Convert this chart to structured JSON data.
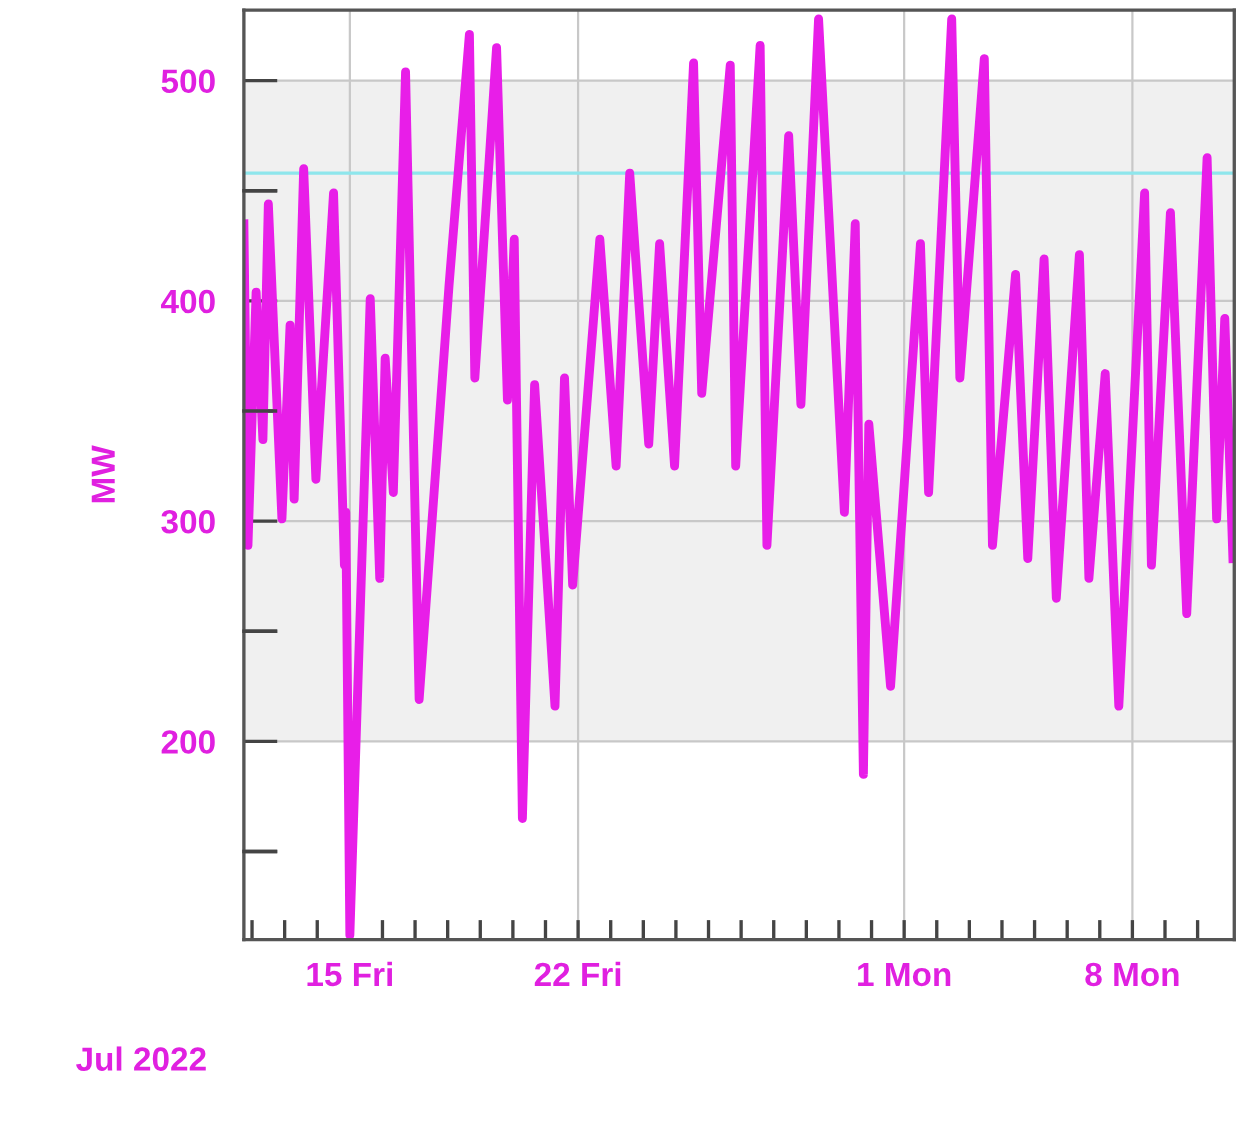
{
  "chart_data": {
    "type": "line",
    "ylabel": "MW",
    "xlabel": "Jul 2022",
    "x": [
      "2022-07-11T18:00",
      "2022-07-11T21:00",
      "2022-07-12T03:00",
      "2022-07-12T08:00",
      "2022-07-12T12:00",
      "2022-07-12T22:00",
      "2022-07-13T04:00",
      "2022-07-13T07:00",
      "2022-07-13T14:00",
      "2022-07-13T23:00",
      "2022-07-14T12:00",
      "2022-07-14T20:00",
      "2022-07-14T21:00",
      "2022-07-15T00:00",
      "2022-07-15T15:00",
      "2022-07-15T22:00",
      "2022-07-16T02:00",
      "2022-07-16T08:00",
      "2022-07-16T17:00",
      "2022-07-17T03:00",
      "2022-07-18T01:00",
      "2022-07-18T16:00",
      "2022-07-18T20:00",
      "2022-07-19T12:00",
      "2022-07-19T20:00",
      "2022-07-20T01:00",
      "2022-07-20T07:00",
      "2022-07-20T16:00",
      "2022-07-21T07:00",
      "2022-07-21T14:00",
      "2022-07-21T20:00",
      "2022-07-22T16:00",
      "2022-07-23T04:00",
      "2022-07-23T14:00",
      "2022-07-24T04:00",
      "2022-07-24T12:00",
      "2022-07-24T23:00",
      "2022-07-25T13:00",
      "2022-07-25T19:00",
      "2022-07-26T16:00",
      "2022-07-26T20:00",
      "2022-07-27T14:00",
      "2022-07-27T19:00",
      "2022-07-28T11:00",
      "2022-07-28T20:00",
      "2022-07-29T09:00",
      "2022-07-30T04:00",
      "2022-07-30T12:00",
      "2022-07-30T18:00",
      "2022-07-30T22:00",
      "2022-07-31T14:00",
      "2022-07-31T23:00",
      "2022-08-01T12:00",
      "2022-08-01T18:00",
      "2022-08-02T11:00",
      "2022-08-02T17:00",
      "2022-08-03T11:00",
      "2022-08-03T17:00",
      "2022-08-04T10:00",
      "2022-08-04T19:00",
      "2022-08-05T07:00",
      "2022-08-05T16:00",
      "2022-08-06T09:00",
      "2022-08-06T16:00",
      "2022-08-07T04:00",
      "2022-08-07T14:00",
      "2022-08-08T09:00",
      "2022-08-08T14:00",
      "2022-08-09T04:00",
      "2022-08-09T16:00",
      "2022-08-10T07:00",
      "2022-08-10T14:00",
      "2022-08-10T20:00",
      "2022-08-11T02:00"
    ],
    "series": [
      {
        "color": "#e81ee8",
        "values": [
          435,
          289,
          404,
          337,
          444,
          301,
          389,
          310,
          460,
          319,
          449,
          280,
          304,
          112,
          401,
          274,
          374,
          313,
          504,
          219,
          407,
          521,
          365,
          515,
          355,
          428,
          165,
          362,
          216,
          365,
          271,
          428,
          325,
          458,
          335,
          426,
          325,
          508,
          358,
          507,
          325,
          516,
          289,
          475,
          353,
          528,
          304,
          435,
          185,
          344,
          225,
          307,
          426,
          313,
          528,
          365,
          510,
          289,
          412,
          283,
          419,
          265,
          421,
          274,
          367,
          216,
          449,
          280,
          440,
          258,
          465,
          301,
          392,
          283
        ]
      }
    ],
    "xlim": [
      "2022-07-11T18:00",
      "2022-08-11T03:00"
    ],
    "ylim": [
      110,
      532
    ],
    "yticks": [
      {
        "value": 150,
        "label": null
      },
      200,
      {
        "value": 250,
        "label": null
      },
      300,
      {
        "value": 350,
        "label": null
      },
      400,
      {
        "value": 450,
        "label": null
      },
      500
    ],
    "xticks": [
      {
        "value": "2022-07-12",
        "label": null
      },
      {
        "value": "2022-07-13",
        "label": null
      },
      {
        "value": "2022-07-14",
        "label": null
      },
      {
        "value": "2022-07-15",
        "label": "15 Fri"
      },
      {
        "value": "2022-07-16",
        "label": null
      },
      {
        "value": "2022-07-17",
        "label": null
      },
      {
        "value": "2022-07-18",
        "label": null
      },
      {
        "value": "2022-07-19",
        "label": null
      },
      {
        "value": "2022-07-20",
        "label": null
      },
      {
        "value": "2022-07-21",
        "label": null
      },
      {
        "value": "2022-07-22",
        "label": "22 Fri"
      },
      {
        "value": "2022-07-23",
        "label": null
      },
      {
        "value": "2022-07-24",
        "label": null
      },
      {
        "value": "2022-07-25",
        "label": null
      },
      {
        "value": "2022-07-26",
        "label": null
      },
      {
        "value": "2022-07-27",
        "label": null
      },
      {
        "value": "2022-07-28",
        "label": null
      },
      {
        "value": "2022-07-29",
        "label": null
      },
      {
        "value": "2022-07-30",
        "label": null
      },
      {
        "value": "2022-07-31",
        "label": null
      },
      {
        "value": "2022-08-01",
        "label": "1 Mon"
      },
      {
        "value": "2022-08-02",
        "label": null
      },
      {
        "value": "2022-08-03",
        "label": null
      },
      {
        "value": "2022-08-04",
        "label": null
      },
      {
        "value": "2022-08-05",
        "label": null
      },
      {
        "value": "2022-08-06",
        "label": null
      },
      {
        "value": "2022-08-07",
        "label": null
      },
      {
        "value": "2022-08-08",
        "label": "8 Mon"
      },
      {
        "value": "2022-08-09",
        "label": null
      },
      {
        "value": "2022-08-10",
        "label": null
      }
    ],
    "bands": [
      {
        "axis": "y",
        "from": 200,
        "to": 500,
        "color": "#f0f0f0"
      }
    ],
    "ref_lines": [
      {
        "axis": "y",
        "value": 458,
        "color": "#8ee6ec"
      }
    ],
    "grid": true,
    "line_style": "solid",
    "marker": "none"
  }
}
